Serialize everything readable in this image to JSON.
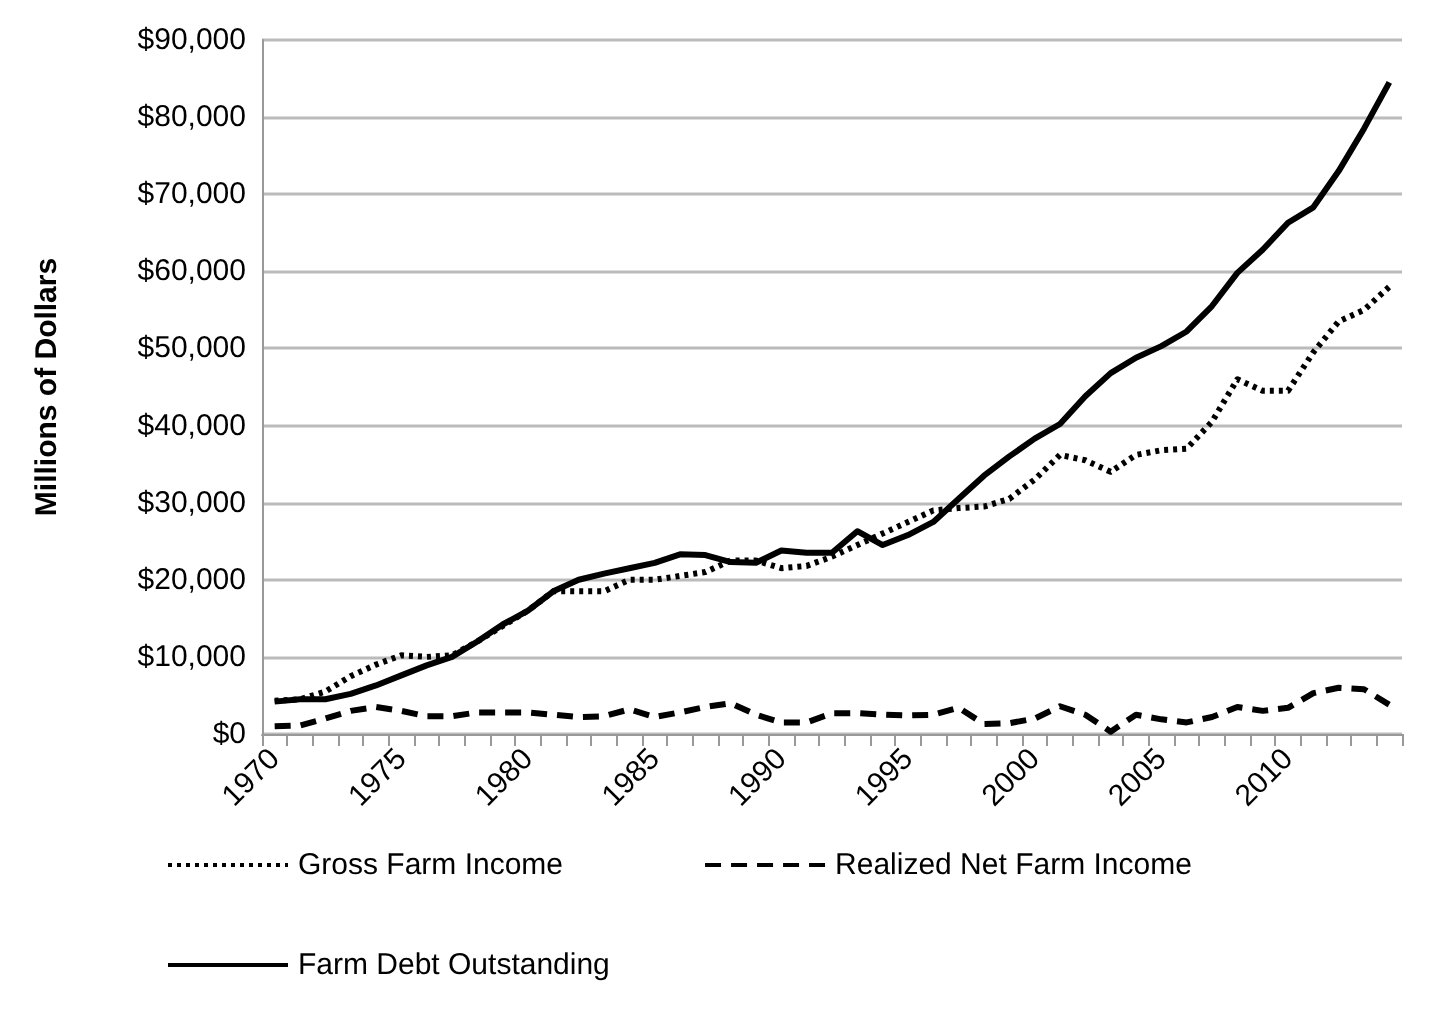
{
  "chart_data": {
    "type": "line",
    "ylabel": "Millions of Dollars",
    "categories": [
      "1970",
      null,
      null,
      null,
      null,
      "1975",
      null,
      null,
      null,
      null,
      "1980",
      null,
      null,
      null,
      null,
      "1985",
      null,
      null,
      null,
      null,
      "1990",
      null,
      null,
      null,
      null,
      "1995",
      null,
      null,
      null,
      null,
      "2000",
      null,
      null,
      null,
      null,
      "2005",
      null,
      null,
      null,
      null,
      "2010",
      null,
      null,
      null,
      null
    ],
    "series": [
      {
        "name": "Gross Farm Income",
        "color": "#000000",
        "line_style": "dotted",
        "values": [
          4300,
          4500,
          5500,
          7500,
          9000,
          10200,
          10000,
          10200,
          12000,
          14000,
          16000,
          18500,
          18500,
          18500,
          20000,
          20000,
          20500,
          21000,
          22500,
          22500,
          21500,
          21800,
          23000,
          24500,
          26000,
          27500,
          29000,
          29300,
          29500,
          30500,
          33000,
          36200,
          35500,
          34000,
          36200,
          36800,
          37000,
          40500,
          46000,
          44500,
          44500,
          49500,
          53500,
          55000,
          58000
        ]
      },
      {
        "name": "Realized Net Farm Income",
        "color": "#000000",
        "line_style": "dashed",
        "values": [
          1000,
          1100,
          2000,
          3000,
          3500,
          3000,
          2300,
          2300,
          2800,
          2800,
          2800,
          2500,
          2200,
          2300,
          3200,
          2200,
          2800,
          3500,
          4000,
          2500,
          1500,
          1500,
          2700,
          2700,
          2500,
          2400,
          2500,
          3400,
          1300,
          1400,
          2000,
          3600,
          2500,
          300,
          2500,
          1900,
          1500,
          2200,
          3500,
          3000,
          3400,
          5300,
          6000,
          5800,
          3800
        ]
      },
      {
        "name": "Farm Debt Outstanding",
        "color": "#000000",
        "line_style": "solid",
        "values": [
          4200,
          4500,
          4500,
          5200,
          6300,
          7600,
          8900,
          10000,
          12000,
          14200,
          16000,
          18500,
          20000,
          20800,
          21500,
          22200,
          23300,
          23200,
          22300,
          22200,
          23800,
          23500,
          23500,
          26300,
          24500,
          25800,
          27500,
          30500,
          33500,
          36000,
          38300,
          40200,
          43800,
          46800,
          48800,
          50300,
          52200,
          55500,
          59800,
          62800,
          66300,
          68300,
          73000,
          78500,
          84500
        ]
      }
    ],
    "ylim": [
      0,
      90000
    ],
    "yticks": [
      {
        "value": 0,
        "label": "$0"
      },
      {
        "value": 10000,
        "label": "$10,000"
      },
      {
        "value": 20000,
        "label": "$20,000"
      },
      {
        "value": 30000,
        "label": "$30,000"
      },
      {
        "value": 40000,
        "label": "$40,000"
      },
      {
        "value": 50000,
        "label": "$50,000"
      },
      {
        "value": 60000,
        "label": "$60,000"
      },
      {
        "value": 70000,
        "label": "$70,000"
      },
      {
        "value": 80000,
        "label": "$80,000"
      },
      {
        "value": 90000,
        "label": "$90,000"
      }
    ],
    "grid": "y",
    "legend": "bottom",
    "marker": "none"
  }
}
